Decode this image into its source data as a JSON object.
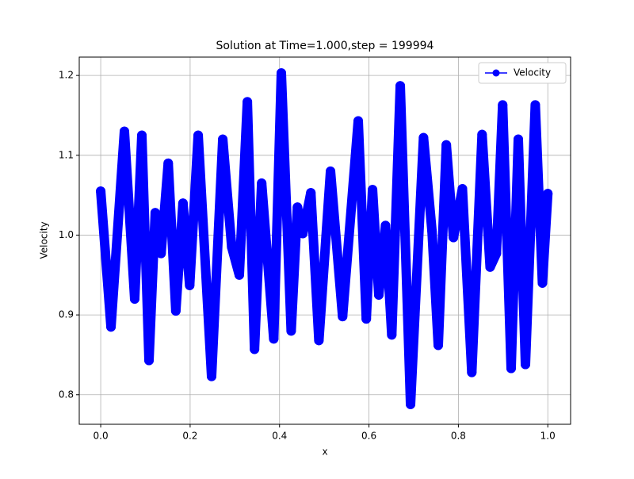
{
  "chart_data": {
    "type": "line",
    "title": "Solution at Time=1.000,step = 199994",
    "x_label": "x",
    "y_label": "Velocity",
    "x": [
      0,
      0.023,
      0.053,
      0.076,
      0.092,
      0.108,
      0.122,
      0.135,
      0.151,
      0.168,
      0.184,
      0.199,
      0.218,
      0.248,
      0.273,
      0.293,
      0.31,
      0.328,
      0.344,
      0.36,
      0.387,
      0.404,
      0.426,
      0.44,
      0.452,
      0.47,
      0.488,
      0.514,
      0.541,
      0.576,
      0.594,
      0.608,
      0.622,
      0.637,
      0.651,
      0.67,
      0.693,
      0.722,
      0.741,
      0.755,
      0.773,
      0.789,
      0.809,
      0.83,
      0.853,
      0.871,
      0.885,
      0.899,
      0.918,
      0.934,
      0.95,
      0.972,
      0.988,
      1.0
    ],
    "series": [
      {
        "name": "Velocity",
        "color": "#0000ff",
        "marker": "o",
        "values": [
          1.055,
          0.885,
          1.13,
          0.92,
          1.125,
          0.843,
          1.028,
          0.977,
          1.09,
          0.905,
          1.04,
          0.937,
          1.125,
          0.823,
          1.12,
          0.985,
          0.95,
          1.167,
          0.857,
          1.065,
          0.87,
          1.203,
          0.88,
          1.035,
          1.002,
          1.053,
          0.868,
          1.08,
          0.898,
          1.143,
          0.895,
          1.057,
          0.925,
          1.012,
          0.875,
          1.187,
          0.788,
          1.122,
          1.005,
          0.862,
          1.113,
          0.997,
          1.058,
          0.828,
          1.126,
          0.96,
          0.977,
          1.163,
          0.833,
          1.12,
          0.838,
          1.163,
          0.94,
          1.052
        ]
      }
    ],
    "xlim": [
      -0.048,
      1.051
    ],
    "ylim": [
      0.763,
      1.223
    ],
    "xticks": [
      {
        "value": 0,
        "label": "0.0"
      },
      0.2,
      0.4,
      0.6,
      0.8,
      {
        "value": 1,
        "label": "1.0"
      }
    ],
    "yticks": [
      0.8,
      0.9,
      {
        "value": 1,
        "label": "1.0"
      },
      1.1,
      1.2
    ],
    "grid": true,
    "legend": "upper right"
  }
}
